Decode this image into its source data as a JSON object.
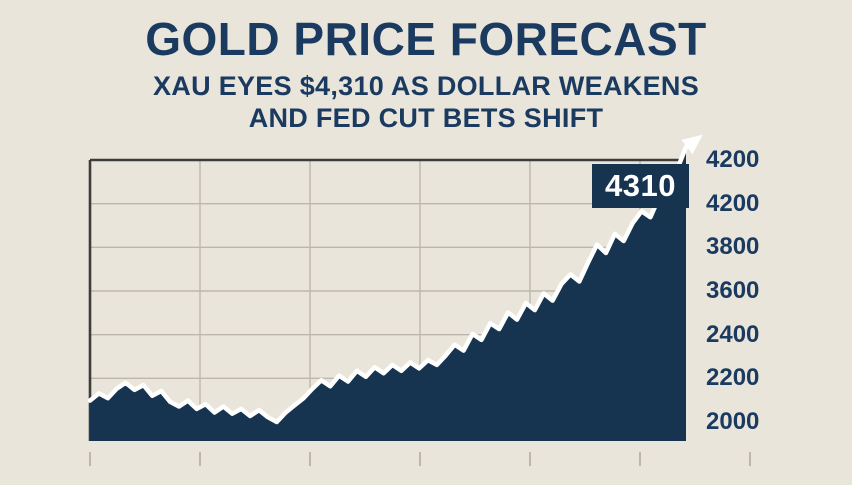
{
  "header": {
    "title": "GOLD PRICE FORECAST",
    "subtitle_line1": "XAU EYES $4,310 AS DOLLAR WEAKENS",
    "subtitle_line2": "AND FED CUT BETS SHIFT"
  },
  "colors": {
    "background": "#e9e5db",
    "text_navy": "#1a3a60",
    "area_fill": "#16334f",
    "line": "#ffffff",
    "grid": "#bdb7ab",
    "axis": "#3c3c3c"
  },
  "chart_data": {
    "type": "area",
    "title": "GOLD PRICE FORECAST",
    "subtitle": "XAU EYES $4,310 AS DOLLAR WEAKENS AND FED CUT BETS SHIFT",
    "xlabel": "",
    "ylabel": "",
    "legend": "none",
    "grid": true,
    "ytick_labels": [
      "4200",
      "4200",
      "3800",
      "3600",
      "2400",
      "2200",
      "2000"
    ],
    "annotation": {
      "label": "4310",
      "value": 4310
    },
    "value_range": [
      2000,
      4310
    ],
    "values": [
      2180,
      2240,
      2200,
      2280,
      2330,
      2270,
      2310,
      2220,
      2260,
      2170,
      2130,
      2180,
      2110,
      2150,
      2080,
      2130,
      2070,
      2110,
      2050,
      2100,
      2040,
      2000,
      2080,
      2140,
      2200,
      2280,
      2350,
      2300,
      2390,
      2340,
      2430,
      2380,
      2460,
      2410,
      2480,
      2430,
      2500,
      2450,
      2520,
      2480,
      2560,
      2650,
      2600,
      2740,
      2690,
      2830,
      2780,
      2920,
      2860,
      3000,
      2940,
      3080,
      3020,
      3160,
      3240,
      3180,
      3340,
      3490,
      3420,
      3580,
      3520,
      3670,
      3770,
      3720,
      3890,
      4000,
      4120,
      4310
    ]
  }
}
